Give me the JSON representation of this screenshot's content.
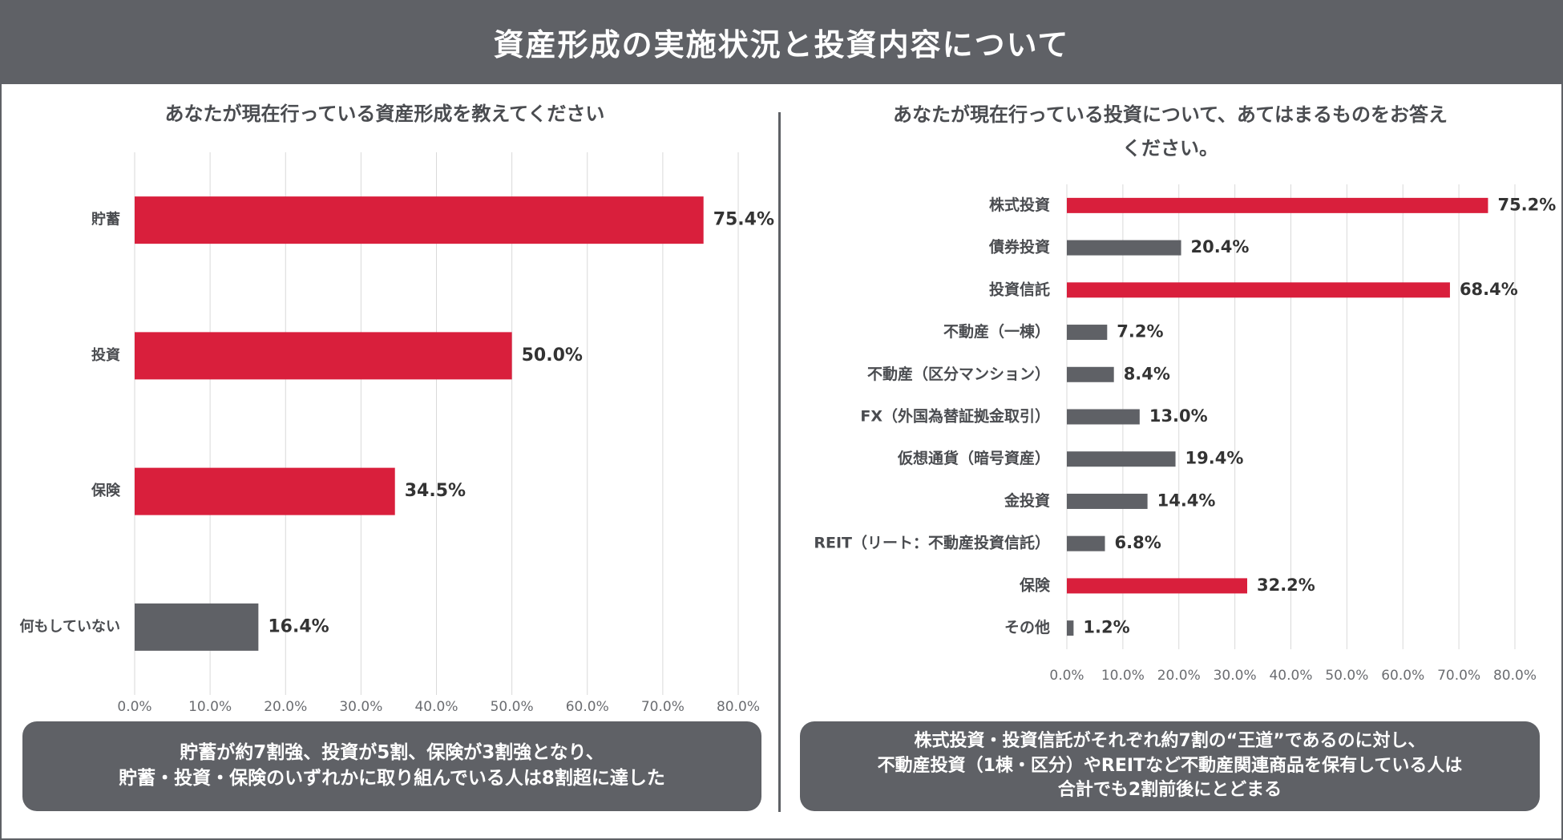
{
  "header": {
    "title": "資産形成の実施状況と投資内容について"
  },
  "colors": {
    "accent": "#d91f3c",
    "neutral": "#5f6166",
    "grid": "#d9d9d9",
    "text": "#4a4c50"
  },
  "left": {
    "question": "あなたが現在行っている資産形成を教えてください",
    "summary_lines": [
      "貯蓄が約7割強、投資が5割、保険が3割強となり、",
      "貯蓄・投資・保険のいずれかに取り組んでいる人は8割超に達した"
    ]
  },
  "right": {
    "question_lines": [
      "あなたが現在行っている投資について、あてはまるものをお答え",
      "ください。"
    ],
    "summary_lines": [
      "株式投資・投資信託がそれぞれ約7割の“王道”であるのに対し、",
      "不動産投資（1棟・区分）やREITなど不動産関連商品を保有している人は",
      "合計でも2割前後にとどまる"
    ]
  },
  "chart_data": [
    {
      "type": "bar",
      "orientation": "horizontal",
      "title": "あなたが現在行っている資産形成を教えてください",
      "categories": [
        "貯蓄",
        "投資",
        "保険",
        "何もしていない"
      ],
      "values": [
        75.4,
        50.0,
        34.5,
        16.4
      ],
      "value_labels": [
        "75.4%",
        "50.0%",
        "34.5%",
        "16.4%"
      ],
      "highlight": [
        true,
        true,
        true,
        false
      ],
      "xlim": [
        0,
        80
      ],
      "ticks": [
        "0.0%",
        "10.0%",
        "20.0%",
        "30.0%",
        "40.0%",
        "50.0%",
        "60.0%",
        "70.0%",
        "80.0%"
      ],
      "grid": true
    },
    {
      "type": "bar",
      "orientation": "horizontal",
      "title": "あなたが現在行っている投資について、あてはまるものをお答えください。",
      "categories": [
        "株式投資",
        "債券投資",
        "投資信託",
        "不動産（一棟）",
        "不動産（区分マンション）",
        "FX（外国為替証拠金取引）",
        "仮想通貨（暗号資産）",
        "金投資",
        "REIT（リート：不動産投資信託）",
        "保険",
        "その他"
      ],
      "values": [
        75.2,
        20.4,
        68.4,
        7.2,
        8.4,
        13.0,
        19.4,
        14.4,
        6.8,
        32.2,
        1.2
      ],
      "value_labels": [
        "75.2%",
        "20.4%",
        "68.4%",
        "7.2%",
        "8.4%",
        "13.0%",
        "19.4%",
        "14.4%",
        "6.8%",
        "32.2%",
        "1.2%"
      ],
      "highlight": [
        true,
        false,
        true,
        false,
        false,
        false,
        false,
        false,
        false,
        true,
        false
      ],
      "xlim": [
        0,
        80
      ],
      "ticks": [
        "0.0%",
        "10.0%",
        "20.0%",
        "30.0%",
        "40.0%",
        "50.0%",
        "60.0%",
        "70.0%",
        "80.0%"
      ],
      "grid": true
    }
  ]
}
